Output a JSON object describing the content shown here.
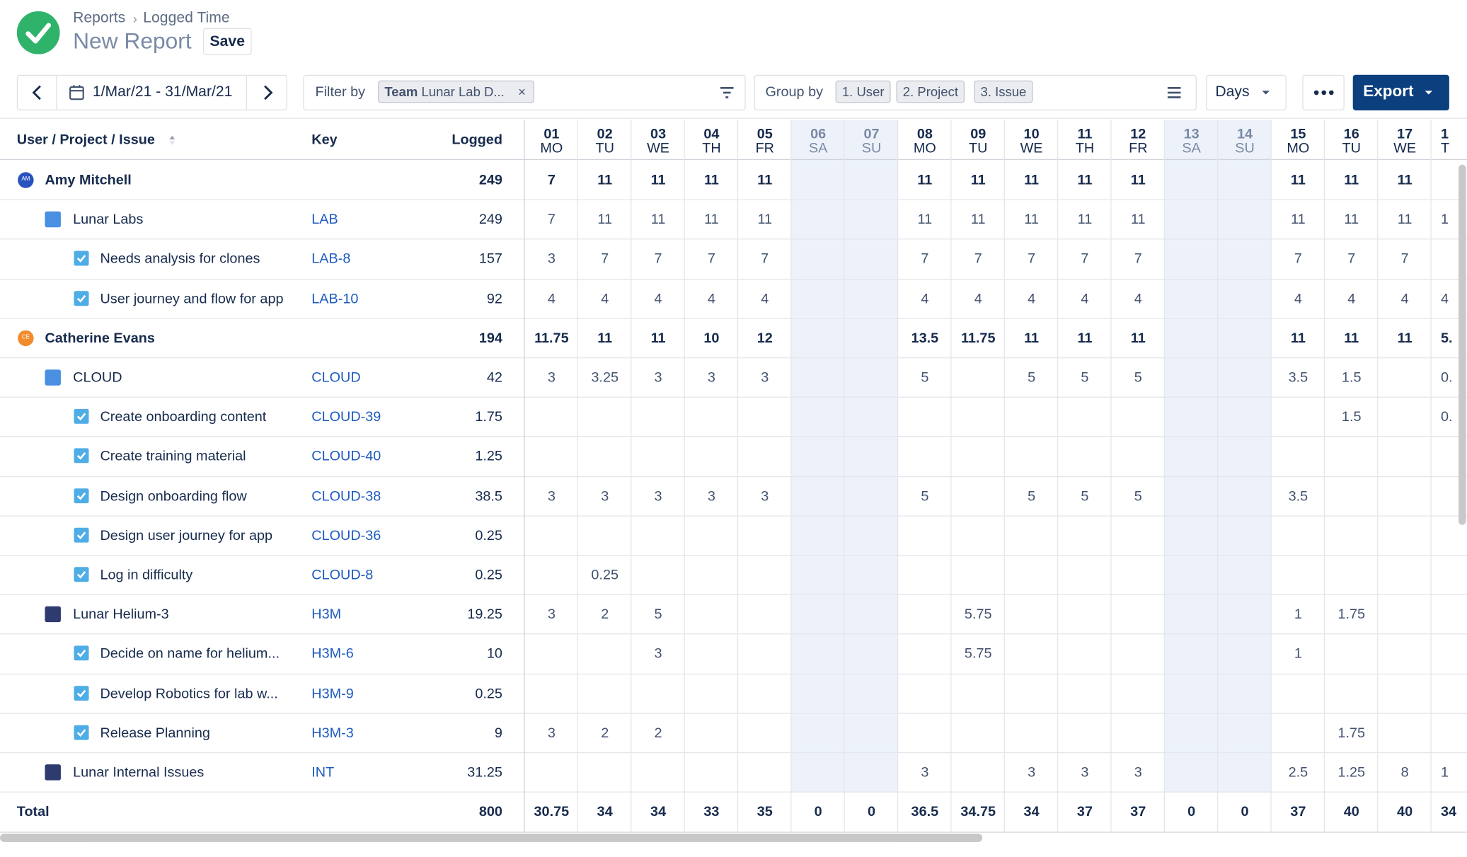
{
  "header": {
    "breadcrumb": [
      "Reports",
      "Logged Time"
    ],
    "title": "New Report",
    "save": "Save"
  },
  "toolbar": {
    "date_range": "1/Mar/21 - 31/Mar/21",
    "filter_label": "Filter by",
    "filter_chip": {
      "field": "Team",
      "value": "Lunar Lab D..."
    },
    "group_label": "Group by",
    "groups": [
      "1. User",
      "2. Project",
      "3. Issue"
    ],
    "period": "Days",
    "export": "Export"
  },
  "table": {
    "columns": {
      "name": "User / Project / Issue",
      "key": "Key",
      "logged": "Logged"
    },
    "days": [
      {
        "num": "01",
        "dow": "MO",
        "weekend": false
      },
      {
        "num": "02",
        "dow": "TU",
        "weekend": false
      },
      {
        "num": "03",
        "dow": "WE",
        "weekend": false
      },
      {
        "num": "04",
        "dow": "TH",
        "weekend": false
      },
      {
        "num": "05",
        "dow": "FR",
        "weekend": false
      },
      {
        "num": "06",
        "dow": "SA",
        "weekend": true
      },
      {
        "num": "07",
        "dow": "SU",
        "weekend": true
      },
      {
        "num": "08",
        "dow": "MO",
        "weekend": false
      },
      {
        "num": "09",
        "dow": "TU",
        "weekend": false
      },
      {
        "num": "10",
        "dow": "WE",
        "weekend": false
      },
      {
        "num": "11",
        "dow": "TH",
        "weekend": false
      },
      {
        "num": "12",
        "dow": "FR",
        "weekend": false
      },
      {
        "num": "13",
        "dow": "SA",
        "weekend": true
      },
      {
        "num": "14",
        "dow": "SU",
        "weekend": true
      },
      {
        "num": "15",
        "dow": "MO",
        "weekend": false
      },
      {
        "num": "16",
        "dow": "TU",
        "weekend": false
      },
      {
        "num": "17",
        "dow": "WE",
        "weekend": false
      },
      {
        "num": "1",
        "dow": "T",
        "weekend": false
      }
    ],
    "rows": [
      {
        "kind": "user",
        "avatar": "AM",
        "label": "Amy Mitchell",
        "key": null,
        "logged": 249,
        "days": [
          7,
          11,
          11,
          11,
          11,
          null,
          null,
          11,
          11,
          11,
          11,
          11,
          null,
          null,
          11,
          11,
          11,
          null
        ]
      },
      {
        "kind": "project",
        "label": "Lunar Labs",
        "key": "LAB",
        "logged": 249,
        "days": [
          7,
          11,
          11,
          11,
          11,
          null,
          null,
          11,
          11,
          11,
          11,
          11,
          null,
          null,
          11,
          11,
          11,
          "1"
        ]
      },
      {
        "kind": "issue",
        "label": "Needs analysis for clones",
        "key": "LAB-8",
        "logged": 157,
        "days": [
          3,
          7,
          7,
          7,
          7,
          null,
          null,
          7,
          7,
          7,
          7,
          7,
          null,
          null,
          7,
          7,
          7,
          null
        ]
      },
      {
        "kind": "issue",
        "label": "User journey and flow for app",
        "key": "LAB-10",
        "logged": 92,
        "days": [
          4,
          4,
          4,
          4,
          4,
          null,
          null,
          4,
          4,
          4,
          4,
          4,
          null,
          null,
          4,
          4,
          4,
          "4"
        ]
      },
      {
        "kind": "user",
        "avatar": "CE",
        "label": "Catherine Evans",
        "key": null,
        "logged": 194,
        "days": [
          11.75,
          11,
          11,
          10,
          12,
          null,
          null,
          13.5,
          11.75,
          11,
          11,
          11,
          null,
          null,
          11,
          11,
          11,
          "5."
        ]
      },
      {
        "kind": "project",
        "label": "CLOUD",
        "key": "CLOUD",
        "logged": 42,
        "days": [
          3,
          3.25,
          3,
          3,
          3,
          null,
          null,
          5,
          null,
          5,
          5,
          5,
          null,
          null,
          3.5,
          1.5,
          null,
          "0."
        ]
      },
      {
        "kind": "issue",
        "label": "Create onboarding content",
        "key": "CLOUD-39",
        "logged": 1.75,
        "days": [
          null,
          null,
          null,
          null,
          null,
          null,
          null,
          null,
          null,
          null,
          null,
          null,
          null,
          null,
          null,
          1.5,
          null,
          "0."
        ]
      },
      {
        "kind": "issue",
        "label": "Create training material",
        "key": "CLOUD-40",
        "logged": 1.25,
        "days": [
          null,
          null,
          null,
          null,
          null,
          null,
          null,
          null,
          null,
          null,
          null,
          null,
          null,
          null,
          null,
          null,
          null,
          null
        ]
      },
      {
        "kind": "issue",
        "label": "Design onboarding flow",
        "key": "CLOUD-38",
        "logged": 38.5,
        "days": [
          3,
          3,
          3,
          3,
          3,
          null,
          null,
          5,
          null,
          5,
          5,
          5,
          null,
          null,
          3.5,
          null,
          null,
          null
        ]
      },
      {
        "kind": "issue",
        "label": "Design user journey for app",
        "key": "CLOUD-36",
        "logged": 0.25,
        "days": [
          null,
          null,
          null,
          null,
          null,
          null,
          null,
          null,
          null,
          null,
          null,
          null,
          null,
          null,
          null,
          null,
          null,
          null
        ]
      },
      {
        "kind": "issue",
        "label": "Log in difficulty",
        "key": "CLOUD-8",
        "logged": 0.25,
        "days": [
          null,
          0.25,
          null,
          null,
          null,
          null,
          null,
          null,
          null,
          null,
          null,
          null,
          null,
          null,
          null,
          null,
          null,
          null
        ]
      },
      {
        "kind": "project",
        "label": "Lunar Helium-3",
        "key": "H3M",
        "logged": 19.25,
        "days": [
          3,
          2,
          5,
          null,
          null,
          null,
          null,
          null,
          5.75,
          null,
          null,
          null,
          null,
          null,
          1,
          1.75,
          null,
          null
        ]
      },
      {
        "kind": "issue",
        "label": "Decide on name for helium...",
        "key": "H3M-6",
        "logged": 10,
        "days": [
          null,
          null,
          3,
          null,
          null,
          null,
          null,
          null,
          5.75,
          null,
          null,
          null,
          null,
          null,
          1,
          null,
          null,
          null
        ]
      },
      {
        "kind": "issue",
        "label": "Develop Robotics for lab w...",
        "key": "H3M-9",
        "logged": 0.25,
        "days": [
          null,
          null,
          null,
          null,
          null,
          null,
          null,
          null,
          null,
          null,
          null,
          null,
          null,
          null,
          null,
          null,
          null,
          null
        ]
      },
      {
        "kind": "issue",
        "label": "Release Planning",
        "key": "H3M-3",
        "logged": 9,
        "days": [
          3,
          2,
          2,
          null,
          null,
          null,
          null,
          null,
          null,
          null,
          null,
          null,
          null,
          null,
          null,
          1.75,
          null,
          null
        ]
      },
      {
        "kind": "project",
        "label": "Lunar Internal Issues",
        "key": "INT",
        "logged": 31.25,
        "days": [
          null,
          null,
          null,
          null,
          null,
          null,
          null,
          3,
          null,
          3,
          3,
          3,
          null,
          null,
          2.5,
          1.25,
          8,
          "1"
        ]
      }
    ],
    "total": {
      "label": "Total",
      "logged": 800,
      "days": [
        30.75,
        34,
        34,
        33,
        35,
        0,
        0,
        36.5,
        34.75,
        34,
        37,
        37,
        0,
        0,
        37,
        40,
        40,
        "34"
      ]
    }
  }
}
